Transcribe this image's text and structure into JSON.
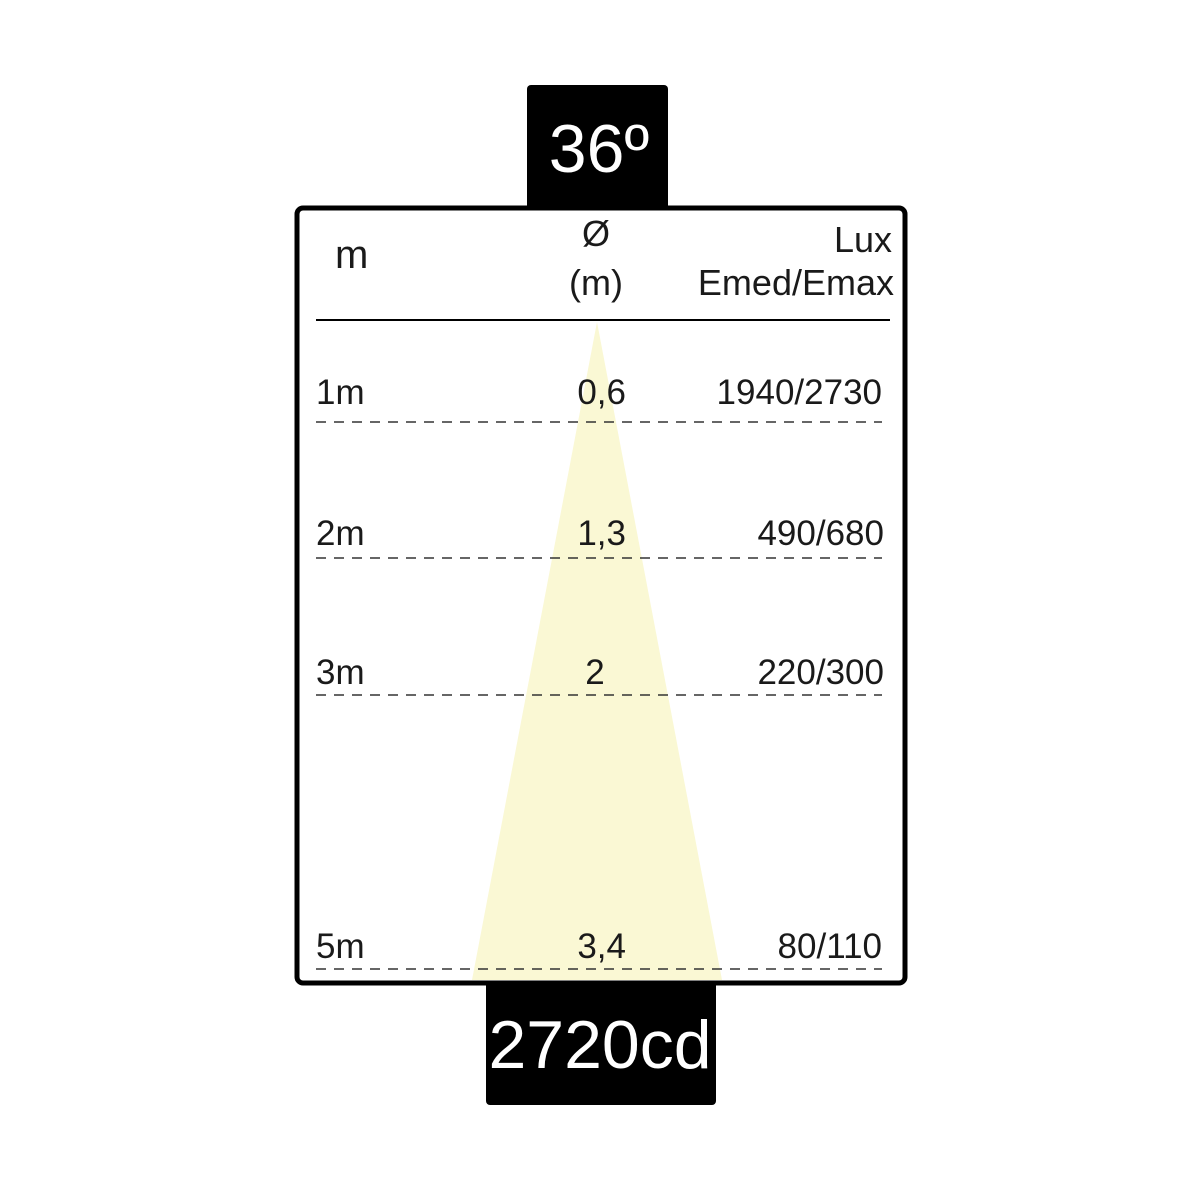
{
  "beam_angle": "36º",
  "intensity": "2720cd",
  "headers": {
    "distance": "m",
    "diameter_symbol": "Ø",
    "diameter_unit": "(m)",
    "lux": "Lux",
    "lux_sub": "Emed/Emax"
  },
  "rows": [
    {
      "distance": "1m",
      "diameter": "0,6",
      "lux": "1940/2730"
    },
    {
      "distance": "2m",
      "diameter": "1,3",
      "lux": "490/680"
    },
    {
      "distance": "3m",
      "diameter": "2",
      "lux": "220/300"
    },
    {
      "distance": "5m",
      "diameter": "3,4",
      "lux": "80/110"
    }
  ],
  "colors": {
    "beam": "#faf8d4",
    "frame": "#000000",
    "text": "#1a1a1a"
  }
}
